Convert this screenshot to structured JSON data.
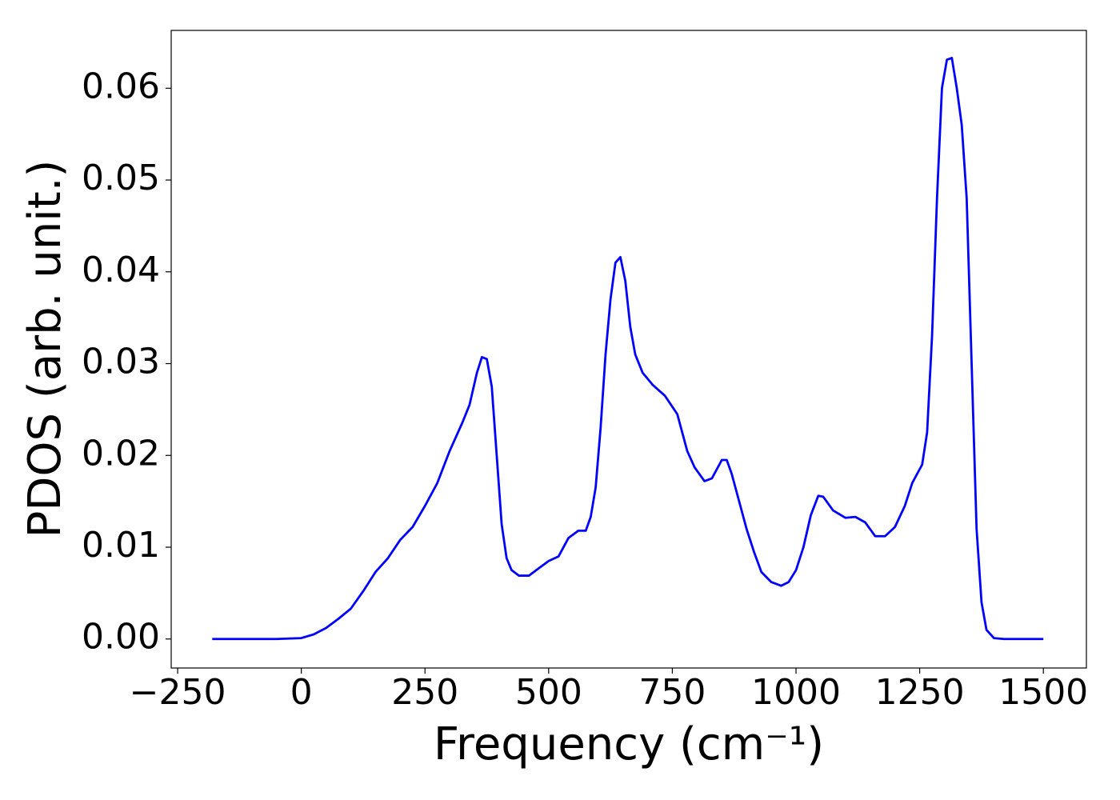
{
  "chart_data": {
    "type": "line",
    "xlabel": "Frequency (cm⁻¹)",
    "ylabel": "PDOS (arb. unit.)",
    "xlim": [
      -263,
      1587
    ],
    "ylim": [
      -0.00316,
      0.0663
    ],
    "xticks": [
      {
        "value": -250,
        "label": "−250"
      },
      0,
      250,
      500,
      750,
      1000,
      1250,
      1500
    ],
    "yticks": [
      {
        "value": 0,
        "label": "0.00"
      },
      0.01,
      0.02,
      0.03,
      0.04,
      0.05,
      0.06
    ],
    "x": [
      -180,
      -50,
      0,
      25,
      50,
      75,
      100,
      125,
      150,
      175,
      200,
      225,
      250,
      275,
      300,
      325,
      340,
      355,
      365,
      375,
      385,
      395,
      405,
      415,
      425,
      440,
      460,
      480,
      500,
      520,
      540,
      560,
      575,
      585,
      595,
      605,
      615,
      625,
      635,
      645,
      655,
      665,
      675,
      690,
      710,
      735,
      760,
      780,
      795,
      815,
      830,
      850,
      860,
      870,
      885,
      900,
      915,
      930,
      950,
      970,
      985,
      1000,
      1015,
      1030,
      1045,
      1055,
      1075,
      1100,
      1120,
      1140,
      1160,
      1180,
      1200,
      1220,
      1235,
      1255,
      1265,
      1275,
      1285,
      1295,
      1305,
      1315,
      1325,
      1335,
      1345,
      1355,
      1365,
      1375,
      1385,
      1400,
      1420,
      1500
    ],
    "series": [
      {
        "color": "#0000ff",
        "values": [
          0,
          0,
          0.0001,
          0.0005,
          0.0012,
          0.0022,
          0.0033,
          0.0052,
          0.0073,
          0.0088,
          0.0108,
          0.0122,
          0.0145,
          0.017,
          0.0205,
          0.0235,
          0.0255,
          0.029,
          0.0307,
          0.0305,
          0.0275,
          0.02,
          0.0125,
          0.0088,
          0.0075,
          0.0069,
          0.0069,
          0.0077,
          0.0085,
          0.009,
          0.011,
          0.0118,
          0.0118,
          0.0133,
          0.0165,
          0.023,
          0.031,
          0.037,
          0.041,
          0.0416,
          0.039,
          0.034,
          0.031,
          0.029,
          0.0277,
          0.0265,
          0.0245,
          0.0205,
          0.0187,
          0.0172,
          0.0175,
          0.0195,
          0.0195,
          0.018,
          0.015,
          0.012,
          0.0095,
          0.0073,
          0.0062,
          0.0058,
          0.0062,
          0.0075,
          0.01,
          0.0135,
          0.0156,
          0.0155,
          0.014,
          0.0132,
          0.0133,
          0.0127,
          0.0112,
          0.0112,
          0.0122,
          0.0145,
          0.017,
          0.019,
          0.0225,
          0.033,
          0.048,
          0.06,
          0.0631,
          0.0633,
          0.06,
          0.056,
          0.048,
          0.03,
          0.012,
          0.004,
          0.001,
          0.0001,
          0,
          0
        ]
      }
    ]
  }
}
